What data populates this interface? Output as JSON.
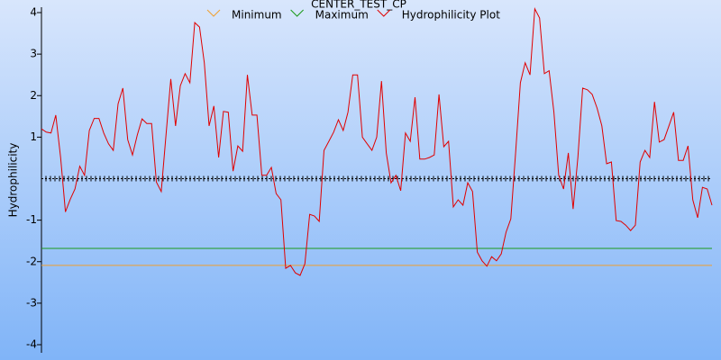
{
  "chart_data": {
    "type": "line",
    "title": "CENTER_TEST_CP",
    "y_label": "Hydrophilicity",
    "ylim": [
      -4,
      4
    ],
    "yticks": [
      -4,
      -3,
      -2,
      -1,
      1,
      2,
      3,
      4
    ],
    "series": [
      {
        "name": "Minimum",
        "color": "#f0a030",
        "value": -2.09
      },
      {
        "name": "Maximum",
        "color": "#1a9a1a",
        "value": -1.68
      },
      {
        "name": "Hydrophilicity Plot",
        "color": "#e00000",
        "values": [
          1.2,
          1.12,
          1.1,
          1.53,
          0.5,
          -0.8,
          -0.5,
          -0.25,
          0.3,
          0.08,
          1.16,
          1.45,
          1.45,
          1.1,
          0.84,
          0.68,
          1.8,
          2.18,
          0.94,
          0.57,
          1.05,
          1.44,
          1.33,
          1.33,
          -0.08,
          -0.31,
          1.05,
          2.4,
          1.27,
          2.24,
          2.53,
          2.31,
          3.76,
          3.65,
          2.79,
          1.27,
          1.75,
          0.51,
          1.62,
          1.6,
          0.18,
          0.79,
          0.66,
          2.5,
          1.53,
          1.53,
          0.08,
          0.08,
          0.27,
          -0.36,
          -0.51,
          -2.16,
          -2.09,
          -2.27,
          -2.33,
          -2.05,
          -0.86,
          -0.9,
          -1.03,
          0.68,
          0.9,
          1.12,
          1.42,
          1.16,
          1.6,
          2.5,
          2.5,
          1.0,
          0.84,
          0.68,
          1.0,
          2.35,
          0.62,
          -0.1,
          0.08,
          -0.29,
          1.1,
          0.9,
          1.96,
          0.47,
          0.47,
          0.51,
          0.57,
          2.03,
          0.77,
          0.9,
          -0.68,
          -0.51,
          -0.64,
          -0.1,
          -0.31,
          -1.77,
          -1.98,
          -2.11,
          -1.88,
          -1.98,
          -1.81,
          -1.29,
          -0.97,
          0.62,
          2.31,
          2.79,
          2.5,
          4.09,
          3.87,
          2.53,
          2.6,
          1.6,
          0.08,
          -0.25,
          0.62,
          -0.73,
          0.51,
          2.18,
          2.14,
          2.03,
          1.7,
          1.27,
          0.36,
          0.4,
          -1.01,
          -1.03,
          -1.12,
          -1.25,
          -1.12,
          0.4,
          0.68,
          0.51,
          1.85,
          0.88,
          0.94,
          1.27,
          1.6,
          0.44,
          0.44,
          0.79,
          -0.51,
          -0.94,
          -0.21,
          -0.25,
          -0.64
        ]
      }
    ]
  }
}
